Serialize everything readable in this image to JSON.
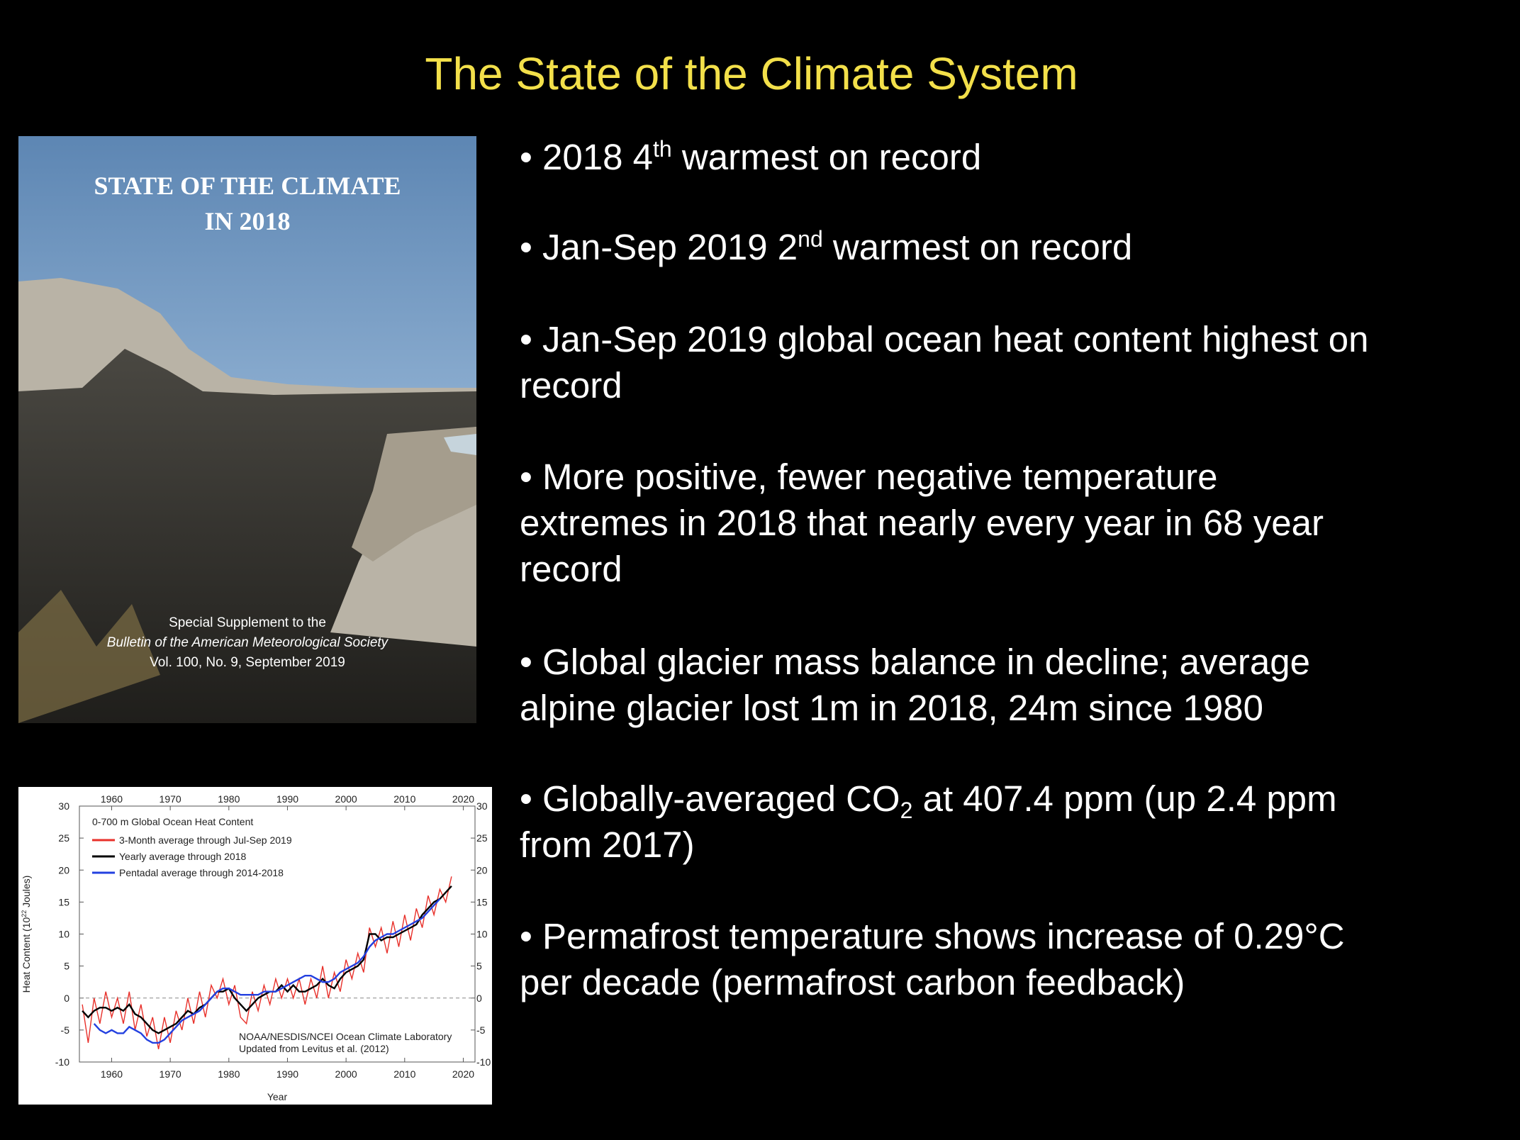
{
  "title": "The State of the Climate System",
  "cover": {
    "heading": [
      "STATE OF THE CLIMATE",
      "IN 2018"
    ],
    "footer": [
      "Special Supplement to the",
      "Bulletin of the American Meteorological Society",
      "Vol. 100, No. 9, September 2019"
    ]
  },
  "bullets": [
    [
      [
        {
          "t": "• 2018 4"
        },
        {
          "sup": "th"
        },
        {
          "t": " warmest on record"
        }
      ]
    ],
    [
      [
        {
          "t": "• Jan-Sep 2019 2"
        },
        {
          "sup": "nd"
        },
        {
          "t": " warmest on record"
        }
      ]
    ],
    [
      [
        {
          "t": "• Jan-Sep 2019 global ocean heat content highest on"
        }
      ],
      [
        {
          "t": "record"
        }
      ]
    ],
    [
      [
        {
          "t": "• More positive, fewer negative temperature"
        }
      ],
      [
        {
          "t": "extremes in 2018 that nearly every year in 68 year"
        }
      ],
      [
        {
          "t": "record"
        }
      ]
    ],
    [
      [
        {
          "t": "• Global glacier mass balance in decline; average"
        }
      ],
      [
        {
          "t": "alpine glacier lost 1m in 2018, 24m since 1980"
        }
      ]
    ],
    [
      [
        {
          "t": "• Globally-averaged CO"
        },
        {
          "sub": "2"
        },
        {
          "t": " at 407.4 ppm (up 2.4 ppm"
        }
      ],
      [
        {
          "t": "from 2017)"
        }
      ]
    ],
    [
      [
        {
          "t": "• Permafrost temperature shows increase of 0.29°C"
        }
      ],
      [
        {
          "t": "per decade (permafrost carbon feedback)"
        }
      ]
    ]
  ],
  "chart_data": {
    "type": "line",
    "title": "0-700 m Global Ocean Heat Content",
    "xlabel": "Year",
    "ylabel": {
      "prefix": "Heat Content (10",
      "sup": "22",
      "suffix": " Joules)"
    },
    "notes": [
      "NOAA/NESDIS/NCEI Ocean Climate Laboratory",
      "Updated from Levitus et al. (2012)"
    ],
    "xlim": [
      1954.5,
      2022
    ],
    "xticks": [
      1960,
      1970,
      1980,
      1990,
      2000,
      2010,
      2020
    ],
    "ylim": [
      -10,
      30
    ],
    "yticks": [
      -10,
      -5,
      0,
      5,
      10,
      15,
      20,
      25,
      30
    ],
    "x": [
      1955,
      1956,
      1957,
      1958,
      1959,
      1960,
      1961,
      1962,
      1963,
      1964,
      1965,
      1966,
      1967,
      1968,
      1969,
      1970,
      1971,
      1972,
      1973,
      1974,
      1975,
      1976,
      1977,
      1978,
      1979,
      1980,
      1981,
      1982,
      1983,
      1984,
      1985,
      1986,
      1987,
      1988,
      1989,
      1990,
      1991,
      1992,
      1993,
      1994,
      1995,
      1996,
      1997,
      1998,
      1999,
      2000,
      2001,
      2002,
      2003,
      2004,
      2005,
      2006,
      2007,
      2008,
      2009,
      2010,
      2011,
      2012,
      2013,
      2014,
      2015,
      2016,
      2017,
      2018
    ],
    "series": [
      {
        "name": "3-Month average through Jul-Sep 2019",
        "color": "#e8302a",
        "values": [
          -1,
          -7,
          0,
          -4,
          1,
          -3,
          0,
          -4,
          1,
          -5,
          -1,
          -6,
          -3,
          -8,
          -3,
          -7,
          -2,
          -5,
          0,
          -4,
          1,
          -3,
          2,
          0,
          3,
          -1,
          2,
          -3,
          -4,
          1,
          -2,
          2,
          -1,
          3,
          0,
          3,
          0,
          3,
          -1,
          3,
          0,
          5,
          0,
          4,
          1,
          6,
          3,
          7,
          4,
          11,
          8,
          11,
          7,
          12,
          8,
          13,
          9,
          14,
          11,
          16,
          13,
          17,
          15,
          19
        ]
      },
      {
        "name": "Yearly average through 2018",
        "color": "#000000",
        "values": [
          -2,
          -3,
          -2,
          -1.5,
          -1.5,
          -2,
          -1.5,
          -2,
          -1,
          -2.5,
          -3,
          -4,
          -5,
          -5.5,
          -5,
          -4.5,
          -4,
          -3,
          -2,
          -2.5,
          -1.5,
          -1,
          0,
          1,
          1,
          1.5,
          0,
          -1,
          -2,
          -1,
          0,
          0.5,
          1,
          1,
          2,
          1,
          2,
          1,
          1,
          1.5,
          2,
          3,
          2,
          1.5,
          3,
          4,
          4.5,
          5,
          6,
          10,
          10,
          9,
          9.5,
          9.5,
          10,
          10.5,
          11,
          11.5,
          13,
          14,
          15,
          15.5,
          16.5,
          17.5
        ]
      },
      {
        "name": "Pentadal average through 2014-2018",
        "color": "#2340e0",
        "values": [
          null,
          null,
          -4,
          -5,
          -5.5,
          -5,
          -5.5,
          -5.5,
          -4.5,
          -5,
          -5.5,
          -6.5,
          -7,
          -7,
          -6.5,
          -5.5,
          -4.5,
          -3.5,
          -3,
          -2.5,
          -2,
          -1,
          0,
          1,
          1.5,
          1.5,
          1,
          0.5,
          0.5,
          0.5,
          0.5,
          1,
          1,
          1,
          1.5,
          2,
          2.5,
          3,
          3.5,
          3.5,
          3,
          2.5,
          2.5,
          3,
          4,
          4.5,
          5,
          5.5,
          6.5,
          8,
          9,
          9.5,
          10,
          10,
          10.5,
          11,
          11.5,
          12,
          12.5,
          13.5,
          14.5,
          15.5,
          null,
          null
        ]
      }
    ]
  }
}
